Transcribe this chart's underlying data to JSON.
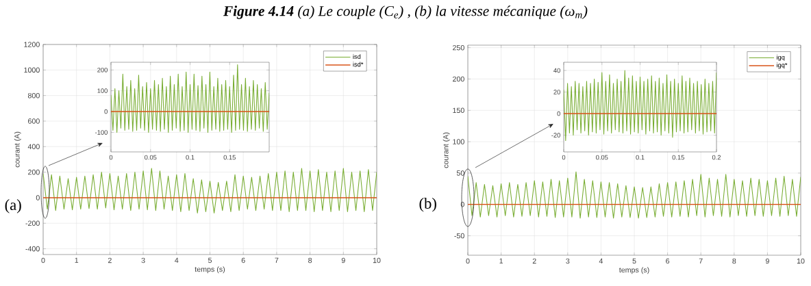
{
  "chart_data": [
    {
      "type": "line",
      "title": "**Figure 4.14** (a) Le couple (C$_{e}$) , (b) la vitesse mécanique (ω$_{m}$)",
      "xlabel": "temps (s)",
      "ylabel": "courant (A)",
      "annotations": [
        "(a)"
      ],
      "x": [
        0,
        0.125,
        0.25,
        0.375,
        0.5,
        0.625,
        0.75,
        0.875,
        1,
        1.125,
        1.25,
        1.375,
        1.5,
        1.625,
        1.75,
        1.875,
        2,
        2.125,
        2.25,
        2.375,
        2.5,
        2.625,
        2.75,
        2.875,
        3,
        3.125,
        3.25,
        3.375,
        3.5,
        3.625,
        3.75,
        3.875,
        4,
        4.125,
        4.25,
        4.375,
        4.5,
        4.625,
        4.75,
        4.875,
        5,
        5.125,
        5.25,
        5.375,
        5.5,
        5.625,
        5.75,
        5.875,
        6,
        6.125,
        6.25,
        6.375,
        6.5,
        6.625,
        6.75,
        6.875,
        7,
        7.125,
        7.25,
        7.375,
        7.5,
        7.625,
        7.75,
        7.875,
        8,
        8.125,
        8.25,
        8.375,
        8.5,
        8.625,
        8.75,
        8.875,
        9,
        9.125,
        9.25,
        9.375,
        9.5,
        9.625,
        9.75,
        9.875,
        10
      ],
      "series": [
        {
          "name": "isd",
          "color": "#77ac30",
          "values": [
            190,
            -90,
            180,
            -100,
            170,
            -90,
            150,
            -95,
            160,
            -90,
            170,
            -85,
            180,
            -90,
            200,
            -80,
            190,
            -95,
            170,
            -90,
            190,
            -100,
            200,
            -90,
            210,
            -95,
            230,
            -100,
            210,
            -90,
            170,
            -100,
            180,
            -110,
            190,
            -100,
            150,
            -120,
            140,
            -110,
            130,
            -120,
            120,
            -100,
            130,
            -110,
            180,
            -100,
            170,
            -90,
            160,
            -100,
            170,
            -90,
            190,
            -100,
            200,
            -100,
            210,
            -110,
            200,
            -100,
            230,
            -100,
            210,
            -110,
            220,
            -100,
            200,
            -110,
            210,
            -100,
            230,
            -110,
            200,
            -100,
            210,
            -110,
            220,
            -100,
            200
          ]
        },
        {
          "name": "isd*",
          "color": "#d95319",
          "x": [
            0,
            10
          ],
          "values": [
            0,
            0
          ]
        }
      ],
      "xlim": [
        0,
        10
      ],
      "ylim": [
        -445,
        1200
      ],
      "xticks": [
        0,
        1,
        2,
        3,
        4,
        5,
        6,
        7,
        8,
        9,
        10
      ],
      "yticks": [
        -400,
        -200,
        0,
        200,
        400,
        600,
        800,
        1000,
        1200
      ],
      "grid": true,
      "legend": "top right"
    },
    {
      "type": "line",
      "x": [
        0,
        0.0025,
        0.005,
        0.0075,
        0.01,
        0.0125,
        0.015,
        0.0175,
        0.02,
        0.0225,
        0.025,
        0.0275,
        0.03,
        0.0325,
        0.035,
        0.0375,
        0.04,
        0.0425,
        0.045,
        0.0475,
        0.05,
        0.0525,
        0.055,
        0.0575,
        0.06,
        0.0625,
        0.065,
        0.0675,
        0.07,
        0.0725,
        0.075,
        0.0775,
        0.08,
        0.0825,
        0.085,
        0.0875,
        0.09,
        0.0925,
        0.095,
        0.0975,
        0.1,
        0.1025,
        0.105,
        0.1075,
        0.11,
        0.1125,
        0.115,
        0.1175,
        0.12,
        0.1225,
        0.125,
        0.1275,
        0.13,
        0.1325,
        0.135,
        0.1375,
        0.14,
        0.1425,
        0.145,
        0.1475,
        0.15,
        0.1525,
        0.155,
        0.1575,
        0.16,
        0.1625,
        0.165,
        0.1675,
        0.17,
        0.1725,
        0.175,
        0.1775,
        0.18,
        0.1825,
        0.185,
        0.1875,
        0.19,
        0.1925,
        0.195,
        0.1975,
        0.2
      ],
      "series": [
        {
          "color": "#77ac30",
          "values": [
            80,
            -90,
            110,
            -100,
            100,
            -80,
            180,
            -90,
            120,
            -85,
            150,
            -95,
            110,
            -90,
            175,
            -80,
            120,
            -90,
            140,
            -100,
            110,
            -85,
            150,
            -90,
            130,
            -95,
            160,
            -85,
            120,
            -100,
            170,
            -90,
            130,
            -80,
            180,
            -95,
            120,
            -90,
            190,
            -100,
            130,
            -85,
            180,
            -90,
            125,
            -95,
            170,
            -80,
            130,
            -100,
            190,
            -90,
            120,
            -85,
            160,
            -95,
            130,
            -90,
            150,
            -85,
            120,
            -100,
            175,
            -90,
            225,
            -85,
            130,
            -90,
            160,
            -95,
            120,
            -85,
            150,
            -90,
            130,
            -80,
            110,
            -95,
            140,
            -85,
            90
          ]
        },
        {
          "color": "#d95319",
          "x": [
            0,
            0.2
          ],
          "values": [
            0,
            0
          ]
        }
      ],
      "xlim": [
        0,
        0.2
      ],
      "ylim": [
        -194,
        237
      ],
      "xticks": [
        0,
        0.05,
        0.1,
        0.15
      ],
      "yticks": [
        -100,
        0,
        100,
        200
      ],
      "grid": true
    },
    {
      "type": "line",
      "xlabel": "temps (s)",
      "ylabel": "courant (A)",
      "annotations": [
        "(b)"
      ],
      "x": [
        0,
        0.125,
        0.25,
        0.375,
        0.5,
        0.625,
        0.75,
        0.875,
        1,
        1.125,
        1.25,
        1.375,
        1.5,
        1.625,
        1.75,
        1.875,
        2,
        2.125,
        2.25,
        2.375,
        2.5,
        2.625,
        2.75,
        2.875,
        3,
        3.125,
        3.25,
        3.375,
        3.5,
        3.625,
        3.75,
        3.875,
        4,
        4.125,
        4.25,
        4.375,
        4.5,
        4.625,
        4.75,
        4.875,
        5,
        5.125,
        5.25,
        5.375,
        5.5,
        5.625,
        5.75,
        5.875,
        6,
        6.125,
        6.25,
        6.375,
        6.5,
        6.625,
        6.75,
        6.875,
        7,
        7.125,
        7.25,
        7.375,
        7.5,
        7.625,
        7.75,
        7.875,
        8,
        8.125,
        8.25,
        8.375,
        8.5,
        8.625,
        8.75,
        8.875,
        9,
        9.125,
        9.25,
        9.375,
        9.5,
        9.625,
        9.75,
        9.875,
        10
      ],
      "series": [
        {
          "name": "igq",
          "color": "#77ac30",
          "values": [
            45,
            -18,
            35,
            -20,
            32,
            -18,
            30,
            -20,
            33,
            -18,
            35,
            -20,
            32,
            -19,
            35,
            -18,
            38,
            -20,
            36,
            -19,
            40,
            -21,
            38,
            -20,
            42,
            -20,
            52,
            -22,
            40,
            -20,
            38,
            -21,
            36,
            -20,
            35,
            -22,
            33,
            -20,
            30,
            -21,
            28,
            -22,
            27,
            -21,
            28,
            -20,
            33,
            -19,
            35,
            -20,
            36,
            -19,
            38,
            -20,
            40,
            -18,
            48,
            -20,
            42,
            -18,
            40,
            -19,
            48,
            -20,
            40,
            -18,
            38,
            -19,
            42,
            -18,
            40,
            -19,
            38,
            -18,
            42,
            -19,
            45,
            -18,
            40,
            -19,
            44
          ]
        },
        {
          "name": "igq*",
          "color": "#d95319",
          "x": [
            0,
            10
          ],
          "values": [
            0,
            0
          ]
        }
      ],
      "xlim": [
        0,
        10
      ],
      "ylim": [
        -81,
        254
      ],
      "xticks": [
        0,
        1,
        2,
        3,
        4,
        5,
        6,
        7,
        8,
        9,
        10
      ],
      "yticks": [
        -50,
        0,
        50,
        100,
        150,
        200,
        250
      ],
      "grid": true,
      "legend": "top right"
    },
    {
      "type": "line",
      "x": [
        0,
        0.0025,
        0.005,
        0.0075,
        0.01,
        0.0125,
        0.015,
        0.0175,
        0.02,
        0.0225,
        0.025,
        0.0275,
        0.03,
        0.0325,
        0.035,
        0.0375,
        0.04,
        0.0425,
        0.045,
        0.0475,
        0.05,
        0.0525,
        0.055,
        0.0575,
        0.06,
        0.0625,
        0.065,
        0.0675,
        0.07,
        0.0725,
        0.075,
        0.0775,
        0.08,
        0.0825,
        0.085,
        0.0875,
        0.09,
        0.0925,
        0.095,
        0.0975,
        0.1,
        0.1025,
        0.105,
        0.1075,
        0.11,
        0.1125,
        0.115,
        0.1175,
        0.12,
        0.1225,
        0.125,
        0.1275,
        0.13,
        0.1325,
        0.135,
        0.1375,
        0.14,
        0.1425,
        0.145,
        0.1475,
        0.15,
        0.1525,
        0.155,
        0.1575,
        0.16,
        0.1625,
        0.165,
        0.1675,
        0.17,
        0.1725,
        0.175,
        0.1775,
        0.18,
        0.1825,
        0.185,
        0.1875,
        0.19,
        0.1925,
        0.195,
        0.1975,
        0.2
      ],
      "series": [
        {
          "color": "#77ac30",
          "values": [
            22,
            -25,
            28,
            -18,
            25,
            -20,
            30,
            -15,
            28,
            -18,
            25,
            -16,
            30,
            -20,
            28,
            -17,
            32,
            -18,
            29,
            -15,
            38,
            -19,
            30,
            -16,
            36,
            -18,
            28,
            -15,
            32,
            -17,
            30,
            -18,
            40,
            -16,
            33,
            -19,
            35,
            -17,
            30,
            -18,
            34,
            -15,
            30,
            -19,
            32,
            -16,
            35,
            -18,
            30,
            -17,
            33,
            -20,
            28,
            -16,
            36,
            -18,
            30,
            -22,
            32,
            -17,
            28,
            -16,
            35,
            -18,
            30,
            -17,
            33,
            -15,
            28,
            -18,
            30,
            -16,
            27,
            -19,
            32,
            -17,
            28,
            -16,
            30,
            -18,
            38
          ]
        },
        {
          "color": "#d95319",
          "x": [
            0,
            0.2
          ],
          "values": [
            0,
            0
          ]
        }
      ],
      "xlim": [
        0,
        0.2
      ],
      "ylim": [
        -35.5,
        47.6
      ],
      "xticks": [
        0,
        0.05,
        0.1,
        0.15,
        0.2
      ],
      "yticks": [
        -20,
        0,
        20,
        40
      ],
      "grid": true
    }
  ]
}
